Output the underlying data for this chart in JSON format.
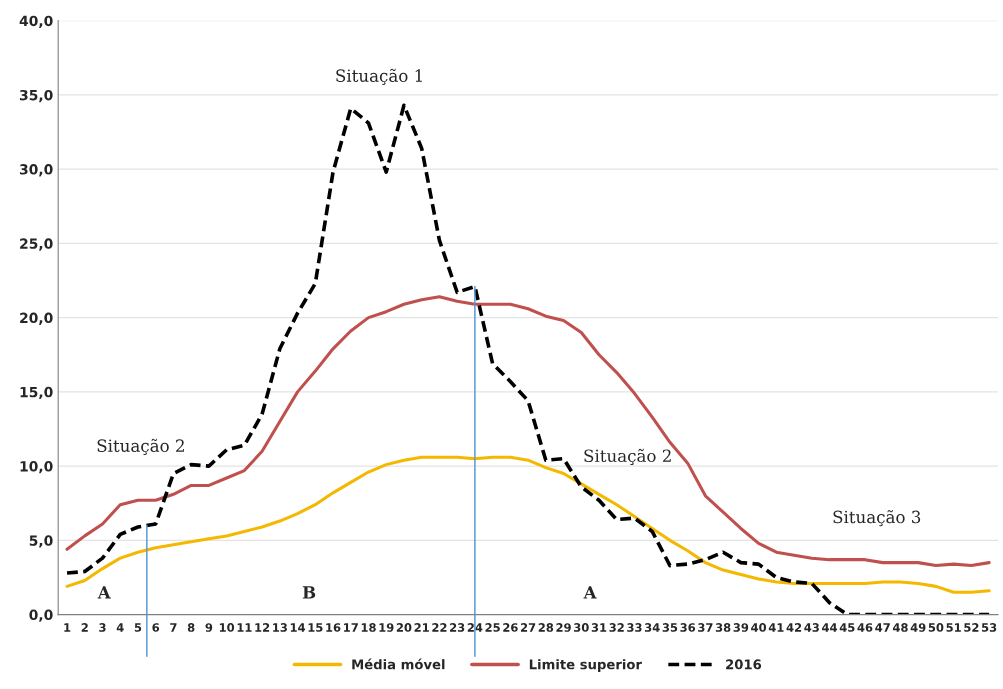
{
  "chart_data": {
    "type": "line",
    "x": [
      1,
      2,
      3,
      4,
      5,
      6,
      7,
      8,
      9,
      10,
      11,
      12,
      13,
      14,
      15,
      16,
      17,
      18,
      19,
      20,
      21,
      22,
      23,
      24,
      25,
      26,
      27,
      28,
      29,
      30,
      31,
      32,
      33,
      34,
      35,
      36,
      37,
      38,
      39,
      40,
      41,
      42,
      43,
      44,
      45,
      46,
      47,
      48,
      49,
      50,
      51,
      52,
      53
    ],
    "xlim": [
      0.5,
      53.5
    ],
    "xticks": [
      1,
      2,
      3,
      4,
      5,
      6,
      7,
      8,
      9,
      10,
      11,
      12,
      13,
      14,
      15,
      16,
      17,
      18,
      19,
      20,
      21,
      22,
      23,
      24,
      25,
      26,
      27,
      28,
      29,
      30,
      31,
      32,
      33,
      34,
      35,
      36,
      37,
      38,
      39,
      40,
      41,
      42,
      43,
      44,
      45,
      46,
      47,
      48,
      49,
      50,
      51,
      52,
      53
    ],
    "ylim": [
      0,
      40
    ],
    "yticks": [
      {
        "value": 0,
        "label": "0,0"
      },
      {
        "value": 5,
        "label": "5,0"
      },
      {
        "value": 10,
        "label": "10,0"
      },
      {
        "value": 15,
        "label": "15,0"
      },
      {
        "value": 20,
        "label": "20,0"
      },
      {
        "value": 25,
        "label": "25,0"
      },
      {
        "value": 30,
        "label": "30,0"
      },
      {
        "value": 35,
        "label": "35,0"
      },
      {
        "value": 40,
        "label": "40,0"
      }
    ],
    "grid": "y",
    "legend": "bottom",
    "marker": "none",
    "series": [
      {
        "name": "Média móvel",
        "color": "#f5b800",
        "line_style": "solid",
        "values": [
          1.9,
          2.3,
          3.1,
          3.8,
          4.2,
          4.5,
          4.7,
          4.9,
          5.1,
          5.3,
          5.6,
          5.9,
          6.3,
          6.8,
          7.4,
          8.2,
          8.9,
          9.6,
          10.1,
          10.4,
          10.6,
          10.6,
          10.6,
          10.5,
          10.6,
          10.6,
          10.4,
          9.9,
          9.5,
          8.8,
          8.1,
          7.4,
          6.6,
          5.8,
          5.0,
          4.3,
          3.5,
          3.0,
          2.7,
          2.4,
          2.2,
          2.1,
          2.1,
          2.1,
          2.1,
          2.1,
          2.2,
          2.2,
          2.1,
          1.9,
          1.5,
          1.5,
          1.6
        ]
      },
      {
        "name": "Limite superior",
        "color": "#c0504d",
        "line_style": "solid",
        "values": [
          4.4,
          5.3,
          6.1,
          7.4,
          7.7,
          7.7,
          8.1,
          8.7,
          8.7,
          9.2,
          9.7,
          11.0,
          13.0,
          15.0,
          16.4,
          17.9,
          19.1,
          20.0,
          20.4,
          20.9,
          21.2,
          21.4,
          21.1,
          20.9,
          20.9,
          20.9,
          20.6,
          20.1,
          19.8,
          19.0,
          17.5,
          16.3,
          14.9,
          13.3,
          11.6,
          10.2,
          8.0,
          6.9,
          5.8,
          4.8,
          4.2,
          4.0,
          3.8,
          3.7,
          3.7,
          3.7,
          3.5,
          3.5,
          3.5,
          3.3,
          3.4,
          3.3,
          3.5
        ]
      },
      {
        "name": "2016",
        "color": "#000000",
        "line_style": "dashed",
        "values": [
          2.8,
          2.9,
          3.8,
          5.4,
          5.9,
          6.1,
          9.5,
          10.1,
          10.0,
          11.1,
          11.4,
          13.5,
          17.9,
          20.3,
          22.3,
          29.8,
          34.1,
          33.1,
          29.8,
          34.3,
          31.4,
          25.2,
          21.7,
          22.1,
          16.9,
          15.7,
          14.4,
          10.4,
          10.5,
          8.6,
          7.7,
          6.4,
          6.5,
          5.6,
          3.3,
          3.4,
          3.7,
          4.2,
          3.5,
          3.4,
          2.5,
          2.2,
          2.1,
          0.8,
          0,
          0,
          0,
          0,
          0,
          0,
          0,
          0,
          0
        ]
      }
    ],
    "ref_lines": [
      {
        "axis": "x",
        "value": 5.5,
        "color": "#5b9bd5"
      },
      {
        "axis": "x",
        "value": 24,
        "color": "#5b9bd5"
      }
    ],
    "annotations": [
      "Situação 1",
      "Situação 2",
      "Situação 2",
      "Situação 3",
      "A",
      "B",
      "A"
    ]
  }
}
